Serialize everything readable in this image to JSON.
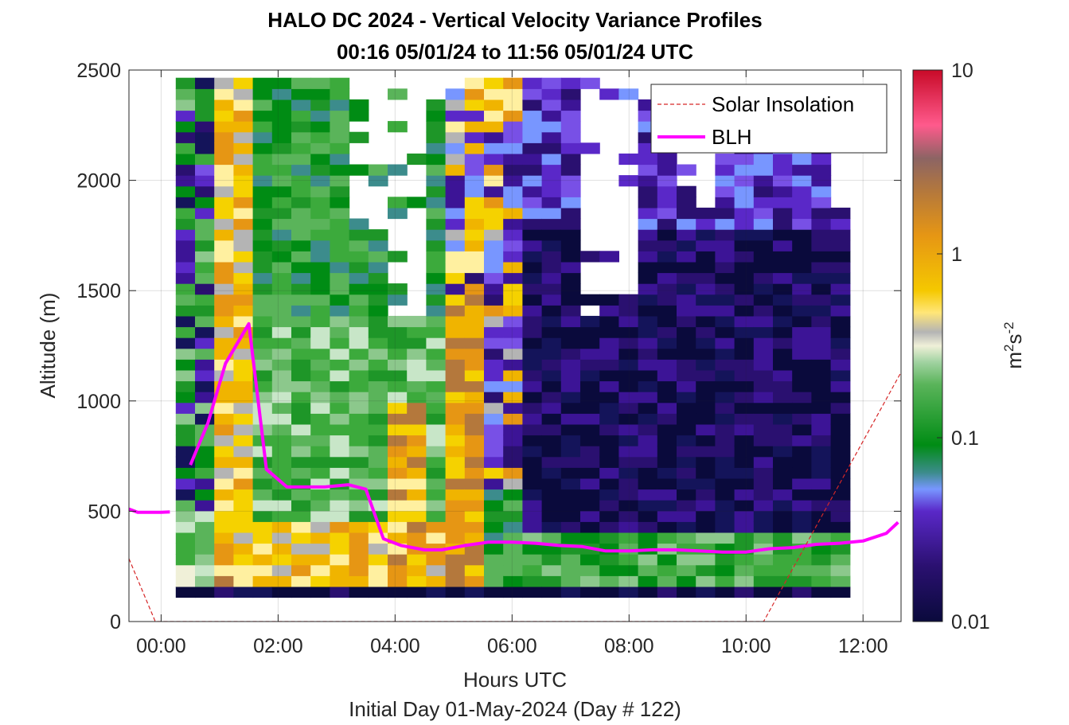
{
  "chart_data": {
    "type": "heatmap",
    "title": "HALO DC 2024 - Vertical Velocity Variance Profiles",
    "subtitle": "00:16 05/01/24 to 11:56 05/01/24  UTC",
    "xlabel": "Hours UTC",
    "xlabel2": "Initial Day 01-May-2024 (Day # 122)",
    "ylabel": "Altitude (m)",
    "xlim": [
      -0.55,
      12.65
    ],
    "ylim": [
      0,
      2500
    ],
    "x_ticks": [
      0,
      2,
      4,
      6,
      8,
      10,
      12
    ],
    "x_tick_labels": [
      "00:00",
      "02:00",
      "04:00",
      "06:00",
      "08:00",
      "10:00",
      "12:00"
    ],
    "y_ticks": [
      0,
      500,
      1000,
      1500,
      2000,
      2500
    ],
    "y_tick_labels": [
      "0",
      "500",
      "1000",
      "1500",
      "2000",
      "2500"
    ],
    "grid": true,
    "colorbar": {
      "scale": "log",
      "range": [
        0.01,
        10
      ],
      "ticks": [
        0.01,
        0.1,
        1,
        10
      ],
      "tick_labels": [
        "0.01",
        "0.1",
        "1",
        "10"
      ],
      "label_base": "m",
      "label_sup1": "2",
      "label_mid": "s",
      "label_sup2": "-2"
    },
    "legend": {
      "placement": "top-right",
      "entries": [
        {
          "label": "Solar Insolation",
          "color": "#d62728",
          "style": "dashed"
        },
        {
          "label": "BLH",
          "color": "#ff00ff",
          "style": "solid"
        }
      ]
    },
    "series": [
      {
        "name": "BLH",
        "color": "#ff00ff",
        "x": [
          -0.55,
          -0.4,
          -0.2,
          0.0,
          0.15,
          0.5,
          0.8,
          1.1,
          1.5,
          1.8,
          2.15,
          2.5,
          2.8,
          3.2,
          3.5,
          3.8,
          4.1,
          4.5,
          4.8,
          5.2,
          5.6,
          6.0,
          6.4,
          6.8,
          7.2,
          7.6,
          8.0,
          8.4,
          8.8,
          9.2,
          9.6,
          10.0,
          10.4,
          10.8,
          11.2,
          11.6,
          12.0,
          12.4,
          12.6
        ],
        "y": [
          510,
          495,
          495,
          495,
          497,
          710,
          900,
          1170,
          1350,
          690,
          610,
          610,
          610,
          620,
          600,
          375,
          345,
          325,
          325,
          345,
          360,
          360,
          355,
          345,
          340,
          320,
          320,
          325,
          325,
          320,
          315,
          315,
          330,
          335,
          350,
          355,
          365,
          400,
          450
        ]
      },
      {
        "name": "Solar Insolation",
        "color": "#d62728",
        "x": [
          -0.55,
          -0.1,
          0.0,
          10.2,
          10.3,
          12.65
        ],
        "y": [
          285,
          0,
          0,
          0,
          0,
          1130
        ]
      }
    ]
  }
}
